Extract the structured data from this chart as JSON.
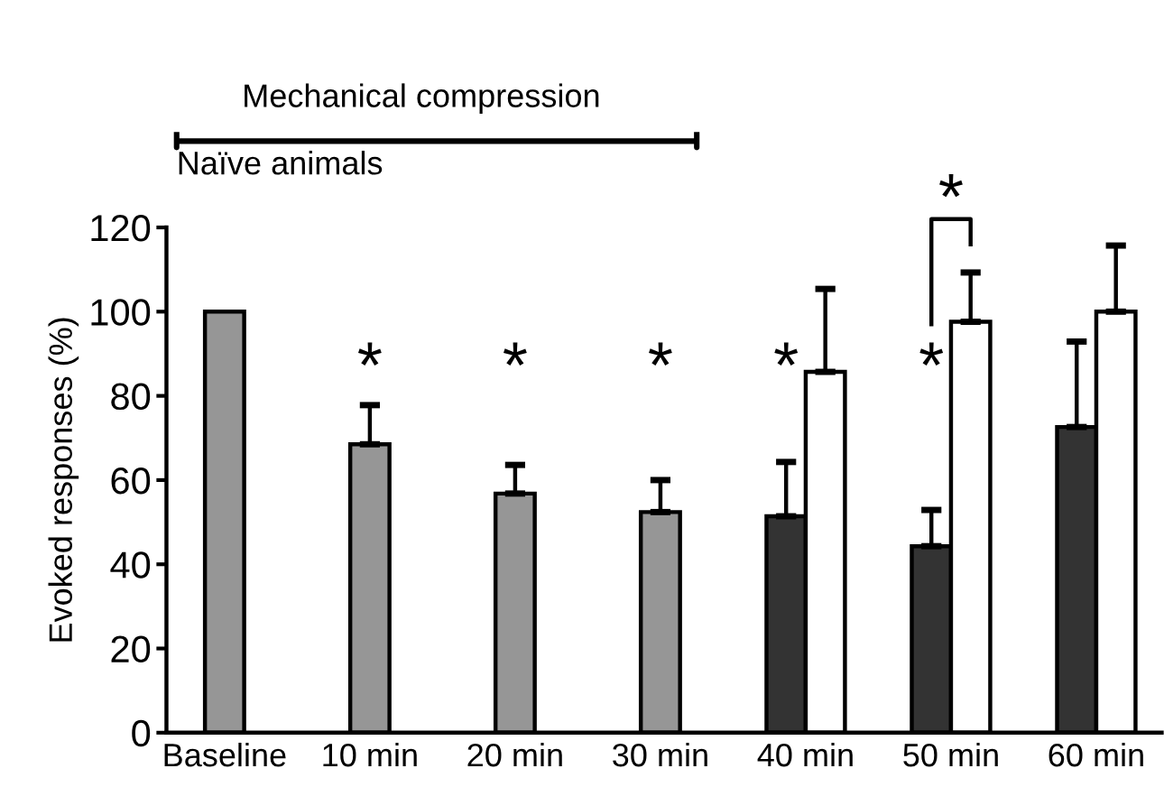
{
  "chart_data": {
    "type": "bar",
    "title": "Mechanical compression",
    "subtitle": "Naïve animals",
    "ylabel": "Evoked responses (%)",
    "categories": [
      "Baseline",
      "10 min",
      "20 min",
      "30 min",
      "40 min",
      "50 min",
      "60 min"
    ],
    "series": [
      {
        "colors": [
          "#969696",
          "#969696",
          "#969696",
          "#969696",
          "#333333",
          "#333333",
          "#333333"
        ],
        "values": [
          100,
          68.5,
          56.8,
          52.4,
          51.4,
          44.3,
          72.6
        ],
        "errors": [
          null,
          [
            68.5,
            77.8
          ],
          [
            56.8,
            63.6
          ],
          [
            52.4,
            60
          ],
          [
            51.4,
            64.3
          ],
          [
            44.3,
            52.9
          ],
          [
            72.6,
            92.9
          ]
        ]
      },
      {
        "color": "#ffffff",
        "values": [
          null,
          null,
          null,
          null,
          85.7,
          97.6,
          100
        ],
        "errors": [
          null,
          null,
          null,
          null,
          [
            85.7,
            105.4
          ],
          [
            97.6,
            109.3
          ],
          [
            100,
            115.7
          ]
        ]
      }
    ],
    "ylim": [
      0,
      120
    ],
    "yticks": [
      0,
      20,
      40,
      60,
      80,
      100,
      120
    ],
    "grid": false,
    "legend": false,
    "annotations": [
      "*",
      "*",
      "*",
      "*",
      "*",
      "*"
    ]
  }
}
